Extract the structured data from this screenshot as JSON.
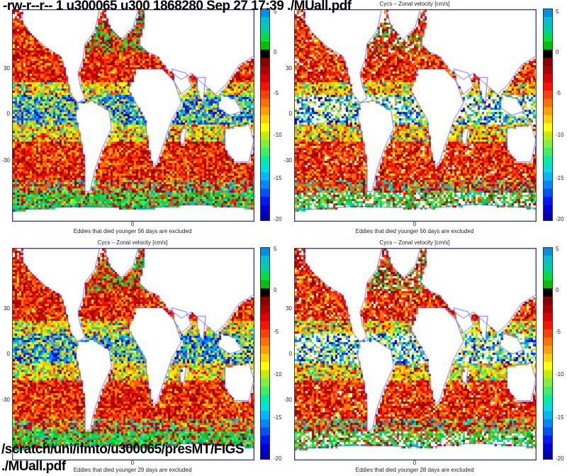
{
  "header": "-rw-r--r-- 1 u300065 u300 1868280 Sep 27 17:39 ./MUall.pdf",
  "footer": {
    "line1": "/scratch/uni/ifmto/u300065/presMT/FIGS",
    "line2": "./MUall.pdf"
  },
  "axis": {
    "y_ticks": [
      "30",
      "0",
      "-30"
    ],
    "x_tick": "0"
  },
  "colorbar": {
    "ticks": [
      "5",
      "0",
      "-5",
      "-10",
      "-15",
      "-20"
    ],
    "colors": [
      "#0000b0",
      "#0000d8",
      "#0018ff",
      "#0050ff",
      "#0088ff",
      "#00b8ff",
      "#00e0e0",
      "#00f0a0",
      "#40f060",
      "#80f040",
      "#c0f000",
      "#ffff00",
      "#ffd000",
      "#ffa000",
      "#ff7000",
      "#ff4000",
      "#ff1000",
      "#e00000",
      "#b00000",
      "#880000",
      "#000000",
      "#00c000",
      "#00e040",
      "#00d0a0",
      "#00c0d0",
      "#0090e0"
    ]
  },
  "panels": [
    {
      "title": "",
      "note": "Eddies that died younger 56 days are excluded"
    },
    {
      "title": "Cycs – Zonal velocity [cm/s]",
      "note": "Eddies that died younger 56 days are excluded"
    },
    {
      "title": "Cycs – Zonal velocity [cm/s]",
      "note": "Eddies that died younger 29 days are excluded"
    },
    {
      "title": "Cycs – Zonal velocity [cm/s]",
      "note": "Eddies that died younger 28 days are excluded"
    }
  ]
}
